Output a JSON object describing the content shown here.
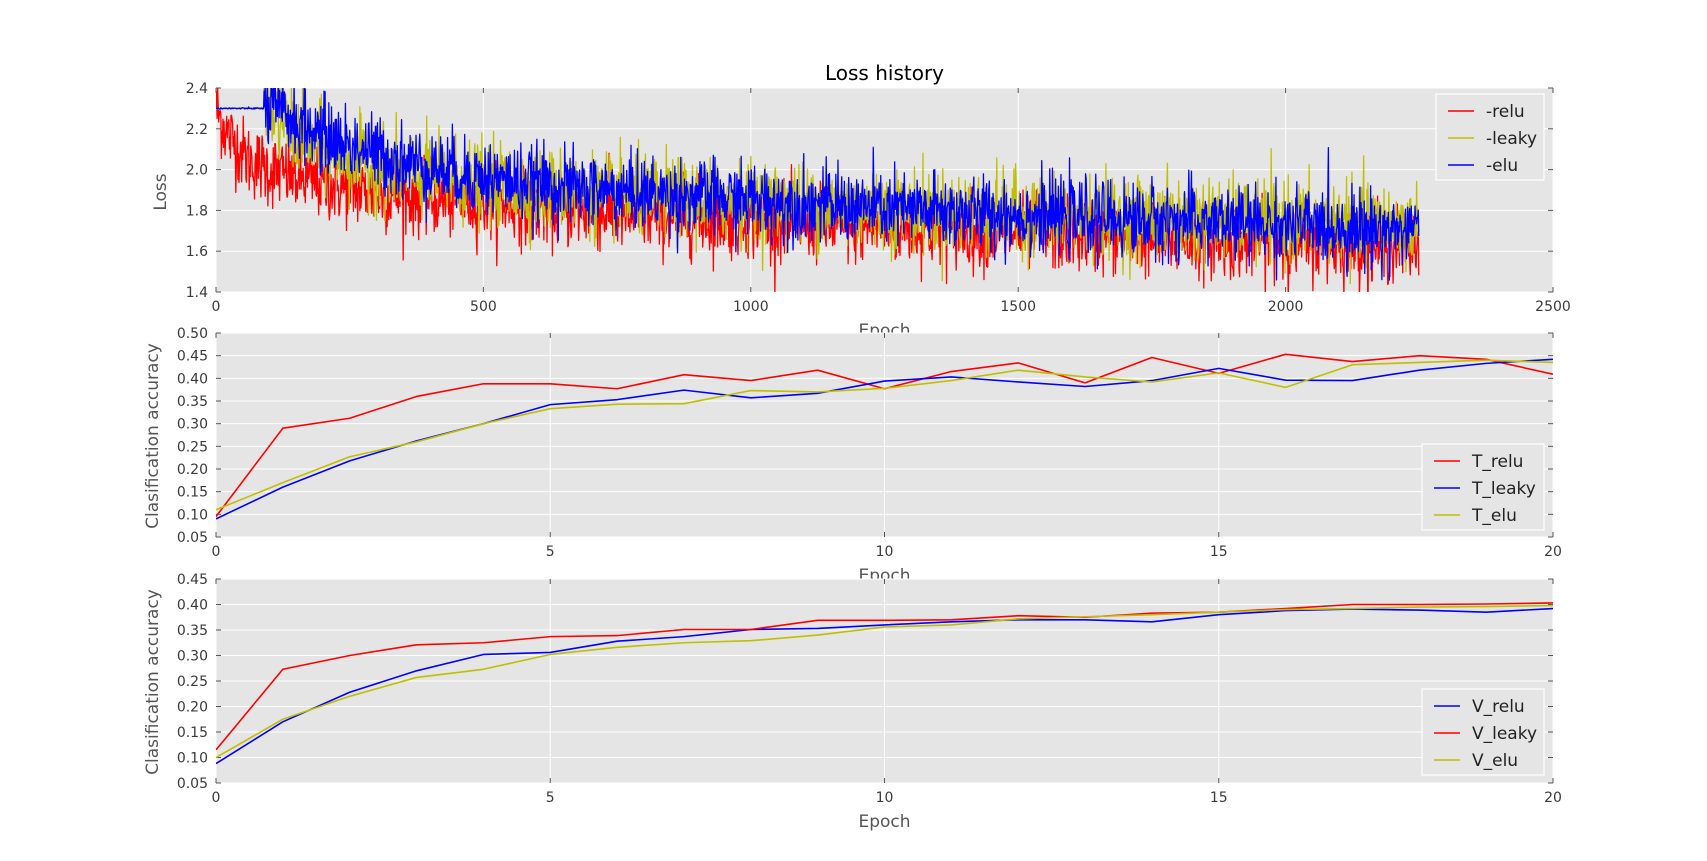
{
  "chart_data": [
    {
      "type": "line",
      "title": "Loss history",
      "xlabel": "Epoch",
      "ylabel": "Loss",
      "xlim": [
        0,
        2500
      ],
      "ylim": [
        1.4,
        2.4
      ],
      "xticks": [
        "0",
        "500",
        "1000",
        "1500",
        "2000",
        "2500"
      ],
      "yticks": [
        "1.4",
        "1.6",
        "1.8",
        "2.0",
        "2.2",
        "2.4"
      ],
      "grid": true,
      "legend": "top-right",
      "noisy": true,
      "series": [
        {
          "name": "-relu",
          "color": "#ff0000",
          "n_points": 2250,
          "noise": 0.09,
          "values_x": [
            0,
            20,
            60,
            100,
            150,
            200,
            300,
            400,
            500,
            700,
            1000,
            1300,
            1600,
            1900,
            2100,
            2250
          ],
          "values_y": [
            2.3,
            2.18,
            2.05,
            2.0,
            1.96,
            1.93,
            1.88,
            1.86,
            1.84,
            1.79,
            1.75,
            1.71,
            1.68,
            1.65,
            1.64,
            1.63
          ]
        },
        {
          "name": "-leaky",
          "color": "#bfbf00",
          "n_points": 2250,
          "noise": 0.1,
          "values_x": [
            0,
            100,
            130,
            170,
            250,
            350,
            500,
            700,
            1000,
            1300,
            1600,
            1900,
            2100,
            2250
          ],
          "values_y": [
            2.3,
            2.3,
            2.22,
            2.14,
            2.05,
            1.98,
            1.93,
            1.88,
            1.84,
            1.8,
            1.77,
            1.75,
            1.74,
            1.73
          ]
        },
        {
          "name": "-elu",
          "color": "#0000ff",
          "n_points": 2250,
          "noise": 0.09,
          "values_x": [
            0,
            90,
            130,
            170,
            250,
            350,
            500,
            700,
            1000,
            1300,
            1600,
            1900,
            2100,
            2250
          ],
          "values_y": [
            2.3,
            2.3,
            2.27,
            2.2,
            2.12,
            2.04,
            1.96,
            1.9,
            1.85,
            1.8,
            1.77,
            1.74,
            1.72,
            1.7
          ]
        }
      ]
    },
    {
      "type": "line",
      "title": "",
      "xlabel": "Epoch",
      "ylabel": "Clasification accuracy",
      "xlim": [
        0,
        20
      ],
      "ylim": [
        0.05,
        0.5
      ],
      "xticks": [
        "0",
        "5",
        "10",
        "15",
        "20"
      ],
      "yticks": [
        "0.05",
        "0.10",
        "0.15",
        "0.20",
        "0.25",
        "0.30",
        "0.35",
        "0.40",
        "0.45",
        "0.50"
      ],
      "grid": true,
      "legend": "bottom-right",
      "x": [
        0,
        1,
        2,
        3,
        4,
        5,
        6,
        7,
        8,
        9,
        10,
        11,
        12,
        13,
        14,
        15,
        16,
        17,
        18,
        19,
        20
      ],
      "series": [
        {
          "name": "T_relu",
          "color": "#ff0000",
          "values": [
            0.095,
            0.29,
            0.312,
            0.36,
            0.388,
            0.388,
            0.377,
            0.408,
            0.395,
            0.418,
            0.377,
            0.415,
            0.434,
            0.39,
            0.446,
            0.411,
            0.453,
            0.437,
            0.45,
            0.442,
            0.409
          ]
        },
        {
          "name": "T_leaky",
          "color": "#0000ff",
          "values": [
            0.09,
            0.16,
            0.218,
            0.262,
            0.3,
            0.342,
            0.353,
            0.374,
            0.357,
            0.367,
            0.394,
            0.403,
            0.392,
            0.382,
            0.395,
            0.422,
            0.396,
            0.395,
            0.418,
            0.433,
            0.442
          ]
        },
        {
          "name": "T_elu",
          "color": "#bfbf00",
          "values": [
            0.11,
            0.17,
            0.227,
            0.26,
            0.3,
            0.333,
            0.343,
            0.344,
            0.373,
            0.37,
            0.378,
            0.395,
            0.418,
            0.403,
            0.392,
            0.412,
            0.38,
            0.43,
            0.435,
            0.44,
            0.435
          ]
        }
      ]
    },
    {
      "type": "line",
      "title": "",
      "xlabel": "Epoch",
      "ylabel": "Clasification accuracy",
      "xlim": [
        0,
        20
      ],
      "ylim": [
        0.05,
        0.45
      ],
      "xticks": [
        "0",
        "5",
        "10",
        "15",
        "20"
      ],
      "yticks": [
        "0.05",
        "0.10",
        "0.15",
        "0.20",
        "0.25",
        "0.30",
        "0.35",
        "0.40",
        "0.45"
      ],
      "grid": true,
      "legend": "bottom-right",
      "x": [
        0,
        1,
        2,
        3,
        4,
        5,
        6,
        7,
        8,
        9,
        10,
        11,
        12,
        13,
        14,
        15,
        16,
        17,
        18,
        19,
        20
      ],
      "series": [
        {
          "name": "V_relu",
          "color": "#0000ff",
          "values": [
            0.088,
            0.17,
            0.228,
            0.27,
            0.302,
            0.306,
            0.328,
            0.337,
            0.351,
            0.353,
            0.36,
            0.366,
            0.37,
            0.37,
            0.366,
            0.38,
            0.388,
            0.391,
            0.389,
            0.385,
            0.392
          ]
        },
        {
          "name": "V_leaky",
          "color": "#ff0000",
          "values": [
            0.115,
            0.273,
            0.3,
            0.321,
            0.325,
            0.337,
            0.339,
            0.351,
            0.351,
            0.369,
            0.369,
            0.37,
            0.378,
            0.375,
            0.383,
            0.385,
            0.392,
            0.4,
            0.4,
            0.401,
            0.403
          ]
        },
        {
          "name": "V_elu",
          "color": "#bfbf00",
          "values": [
            0.1,
            0.175,
            0.22,
            0.257,
            0.273,
            0.302,
            0.316,
            0.325,
            0.329,
            0.34,
            0.356,
            0.36,
            0.372,
            0.376,
            0.38,
            0.385,
            0.39,
            0.392,
            0.395,
            0.396,
            0.398
          ]
        }
      ]
    }
  ]
}
